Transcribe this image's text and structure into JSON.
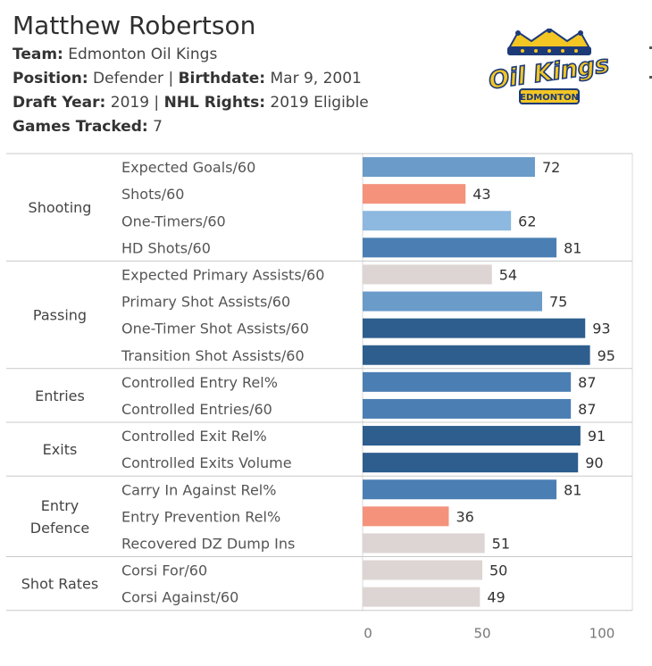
{
  "player": {
    "name": "Matthew Robertson",
    "team_label": "Team:",
    "team": "Edmonton Oil Kings",
    "position_label": "Position:",
    "position": "Defender",
    "birthdate_label": "Birthdate:",
    "birthdate": "Mar 9, 2001",
    "draft_year_label": "Draft Year:",
    "draft_year": "2019",
    "nhl_rights_label": "NHL Rights:",
    "nhl_rights": "2019 Eligible",
    "games_label": "Games Tracked:",
    "games": "7"
  },
  "logo": {
    "line1": "Oil Kings",
    "line2": "EDMONTON"
  },
  "colors": {
    "dark_blue": "#2e5e8e",
    "mid_blue": "#4b7fb3",
    "light_blue": "#6a9bc9",
    "pale_blue": "#8db8df",
    "neutral": "#ddd5d3",
    "salmon": "#f4927b"
  },
  "chart_data": {
    "type": "bar",
    "orientation": "horizontal",
    "xlim": [
      0,
      100
    ],
    "ticks": [
      0,
      50,
      100
    ],
    "groups": [
      {
        "name": "Shooting",
        "metrics": [
          {
            "label": "Expected Goals/60",
            "value": 72,
            "color": "#6a9bc9"
          },
          {
            "label": "Shots/60",
            "value": 43,
            "color": "#f4927b"
          },
          {
            "label": "One-Timers/60",
            "value": 62,
            "color": "#8db8df"
          },
          {
            "label": "HD Shots/60",
            "value": 81,
            "color": "#4b7fb3"
          }
        ]
      },
      {
        "name": "Passing",
        "metrics": [
          {
            "label": "Expected Primary Assists/60",
            "value": 54,
            "color": "#ddd5d3"
          },
          {
            "label": "Primary Shot Assists/60",
            "value": 75,
            "color": "#6a9bc9"
          },
          {
            "label": "One-Timer Shot Assists/60",
            "value": 93,
            "color": "#2e5e8e"
          },
          {
            "label": "Transition Shot Assists/60",
            "value": 95,
            "color": "#2e5e8e"
          }
        ]
      },
      {
        "name": "Entries",
        "metrics": [
          {
            "label": "Controlled Entry Rel%",
            "value": 87,
            "color": "#4b7fb3"
          },
          {
            "label": "Controlled Entries/60",
            "value": 87,
            "color": "#4b7fb3"
          }
        ]
      },
      {
        "name": "Exits",
        "metrics": [
          {
            "label": "Controlled Exit Rel%",
            "value": 91,
            "color": "#2e5e8e"
          },
          {
            "label": "Controlled Exits Volume",
            "value": 90,
            "color": "#2e5e8e"
          }
        ]
      },
      {
        "name": "Entry\nDefence",
        "metrics": [
          {
            "label": "Carry In Against Rel%",
            "value": 81,
            "color": "#4b7fb3"
          },
          {
            "label": "Entry Prevention Rel%",
            "value": 36,
            "color": "#f4927b"
          },
          {
            "label": "Recovered DZ Dump Ins",
            "value": 51,
            "color": "#ddd5d3"
          }
        ]
      },
      {
        "name": "Shot Rates",
        "metrics": [
          {
            "label": "Corsi For/60",
            "value": 50,
            "color": "#ddd5d3"
          },
          {
            "label": "Corsi Against/60",
            "value": 49,
            "color": "#ddd5d3"
          }
        ]
      }
    ]
  }
}
